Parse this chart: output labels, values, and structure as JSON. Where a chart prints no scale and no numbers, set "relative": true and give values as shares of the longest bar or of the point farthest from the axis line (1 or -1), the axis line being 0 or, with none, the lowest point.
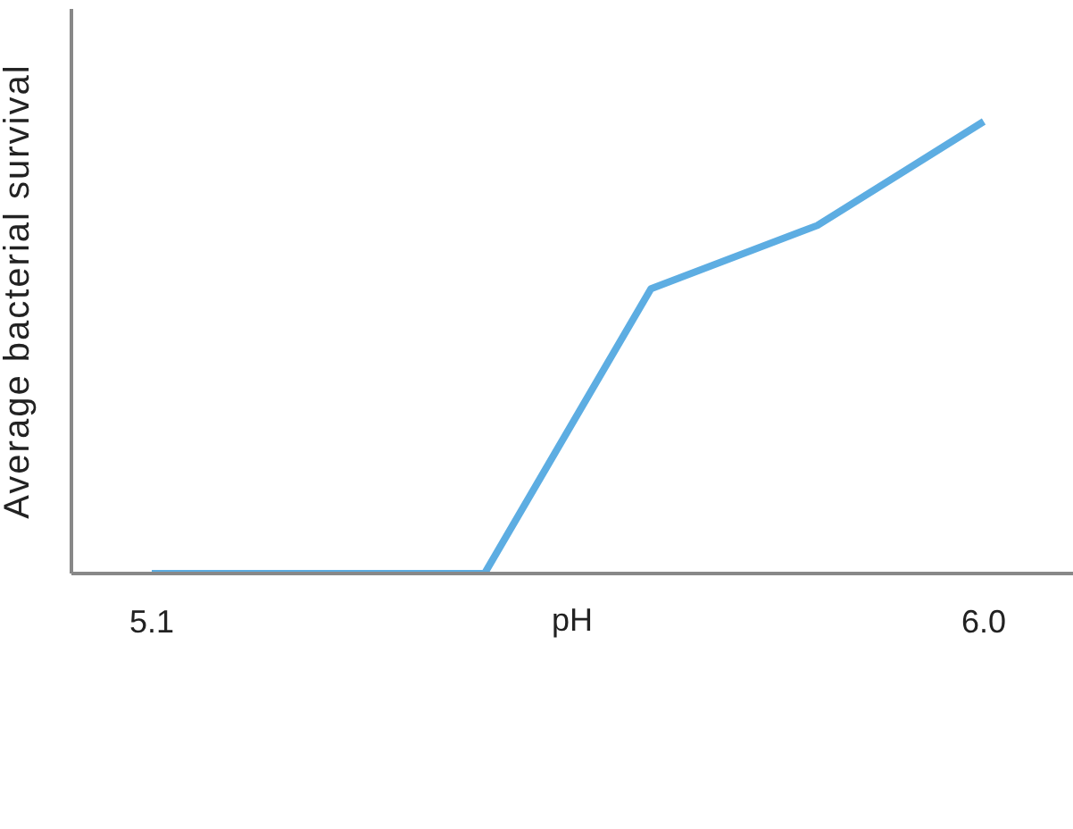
{
  "chart_data": {
    "type": "line",
    "relative": true,
    "xlabel": "pH",
    "ylabel": "Average bacterial survival",
    "categories": [
      "5.1",
      null,
      null,
      null,
      null,
      "6.0"
    ],
    "series": [
      {
        "color": "#5dade2",
        "values": [
          0,
          0,
          0,
          0.63,
          0.77,
          1
        ]
      }
    ],
    "marker": "none",
    "grid": false,
    "legend": false
  }
}
